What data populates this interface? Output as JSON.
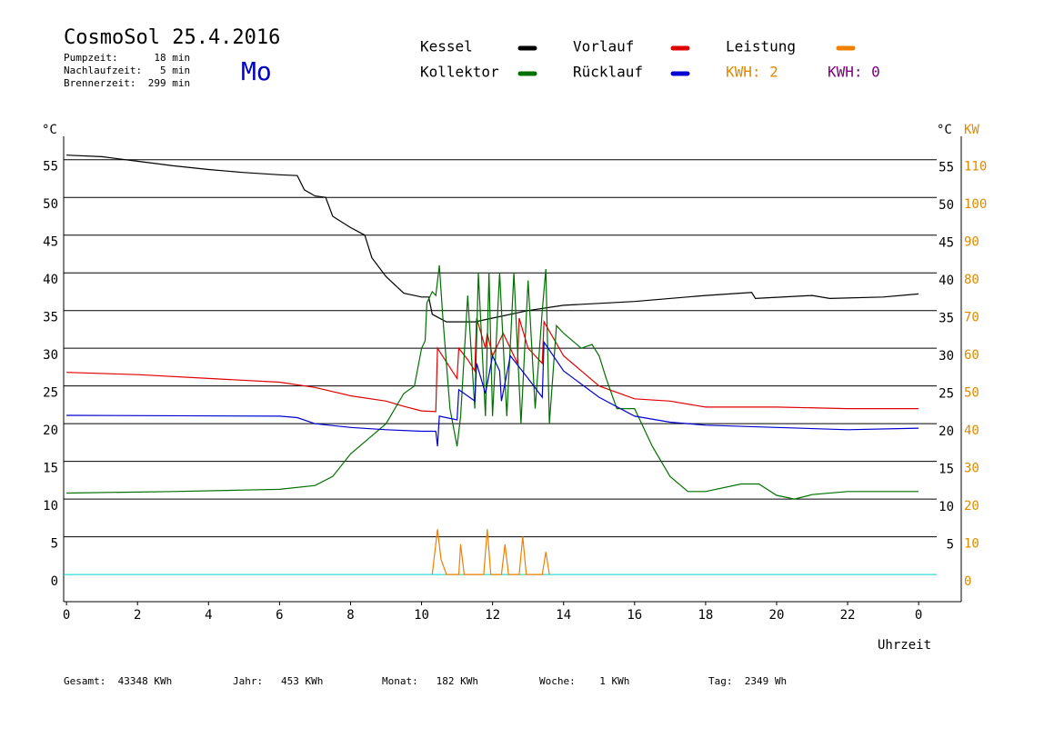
{
  "chart_data": {
    "type": "line",
    "title": "CosmoSol 25.4.2016",
    "info": [
      "Pumpzeit:      18 min",
      "Nachlaufzeit:   5 min",
      "Brennerzeit:  299 min"
    ],
    "weekday": "Mo",
    "y_unit": "°C",
    "y2_unit": "KW",
    "xlabel": "Uhrzeit",
    "xlim": [
      -0.08,
      25.2
    ],
    "xticks": [
      0,
      2,
      4,
      6,
      8,
      10,
      12,
      14,
      16,
      18,
      20,
      22,
      {
        "value": 24,
        "label": "0"
      }
    ],
    "ylim": [
      -3.6,
      58.1
    ],
    "yticks": [
      0,
      5,
      10,
      15,
      20,
      25,
      30,
      35,
      40,
      45,
      50,
      55
    ],
    "y2lim": [
      -7.2,
      116.2
    ],
    "y2ticks": [
      0,
      10,
      20,
      30,
      40,
      50,
      60,
      70,
      80,
      90,
      100,
      110
    ],
    "grid": true,
    "series": [
      {
        "name": "Kessel",
        "color": "#000000",
        "x": [
          0,
          1,
          2,
          3,
          4,
          5,
          6,
          6.5,
          6.7,
          7,
          7.3,
          7.5,
          8,
          8.4,
          8.6,
          9,
          9.5,
          10,
          10.2,
          10.3,
          10.7,
          11.5,
          12,
          13,
          14,
          16,
          18,
          19.3,
          19.4,
          21,
          21.5,
          23,
          24
        ],
        "values": [
          55.6,
          55.4,
          54.8,
          54.2,
          53.7,
          53.3,
          53.0,
          52.9,
          51,
          50.2,
          50,
          47.5,
          46,
          45,
          42,
          39.5,
          37.3,
          36.8,
          36.8,
          34.5,
          33.5,
          33.5,
          34,
          35,
          35.7,
          36.2,
          37,
          37.4,
          36.6,
          37,
          36.6,
          36.8,
          37.2
        ]
      },
      {
        "name": "Vorlauf",
        "color": "#e00000",
        "x": [
          0,
          2,
          4,
          6,
          7,
          8,
          9,
          9.5,
          10,
          10.4,
          10.45,
          11,
          11.05,
          11.3,
          11.5,
          11.55,
          11.8,
          11.85,
          12,
          12.1,
          12.3,
          12.5,
          12.7,
          12.75,
          13,
          13.4,
          13.45,
          14,
          15,
          16,
          17,
          18,
          20,
          22,
          24
        ],
        "values": [
          26.8,
          26.5,
          26,
          25.5,
          24.8,
          23.7,
          23,
          22.3,
          21.7,
          21.6,
          30,
          26,
          30,
          28.5,
          27,
          34,
          30,
          32,
          29,
          30,
          32,
          30,
          28,
          34,
          30,
          28,
          33.5,
          29,
          25,
          23.3,
          23,
          22.2,
          22.2,
          22,
          22
        ]
      },
      {
        "name": "Leistung",
        "color": "#f08000",
        "axis": "y2",
        "x": [
          10.3,
          10.45,
          10.55,
          10.7,
          11.05,
          11.1,
          11.2,
          11.75,
          11.85,
          11.95,
          12.25,
          12.35,
          12.45,
          12.75,
          12.85,
          12.95,
          13.4,
          13.5,
          13.6
        ],
        "values": [
          0,
          12,
          4,
          0,
          0,
          8,
          0,
          0,
          12,
          0,
          0,
          8,
          0,
          0,
          10,
          0,
          0,
          6,
          0
        ]
      },
      {
        "name": "Kollektor",
        "color": "#007000",
        "x": [
          0,
          3,
          5,
          6,
          7,
          7.5,
          8,
          8.5,
          9,
          9.5,
          9.8,
          10,
          10.1,
          10.15,
          10.3,
          10.4,
          10.5,
          10.6,
          10.8,
          11,
          11.1,
          11.3,
          11.5,
          11.6,
          11.8,
          11.9,
          12,
          12.2,
          12.4,
          12.6,
          12.8,
          13,
          13.2,
          13.4,
          13.5,
          13.6,
          13.8,
          14,
          14.5,
          14.8,
          15,
          15.2,
          15.5,
          16,
          16.5,
          17,
          17.5,
          18,
          19,
          19.5,
          20,
          20.5,
          21,
          22,
          23,
          24
        ],
        "values": [
          10.8,
          11,
          11.2,
          11.3,
          11.8,
          13,
          16,
          18,
          20,
          24,
          25,
          30,
          31,
          36,
          37.5,
          37,
          41,
          34,
          22,
          17,
          21,
          37,
          22,
          40,
          21,
          40,
          21,
          40,
          21,
          40,
          20,
          39,
          22,
          35,
          40.5,
          20,
          33,
          32,
          30,
          30.5,
          29,
          26,
          22,
          22,
          17,
          13,
          11,
          11,
          12,
          12,
          10.5,
          10,
          10.6,
          11,
          11,
          11
        ]
      },
      {
        "name": "Rücklauf",
        "color": "#0000d0",
        "x": [
          0,
          6,
          6.5,
          7,
          8,
          9,
          10,
          10.4,
          10.45,
          10.5,
          11,
          11.05,
          11.5,
          11.55,
          11.8,
          12,
          12.2,
          12.25,
          12.5,
          13,
          13.4,
          13.45,
          14,
          15,
          16,
          17,
          18,
          20,
          22,
          24
        ],
        "values": [
          21.1,
          21,
          20.8,
          20,
          19.5,
          19.2,
          19,
          19,
          17,
          21,
          20.5,
          24.5,
          23,
          28,
          24,
          29,
          27,
          23,
          29,
          26,
          23.5,
          30.8,
          27,
          23.5,
          21,
          20.2,
          19.8,
          19.5,
          19.2,
          19.4
        ]
      }
    ],
    "kwh": [
      {
        "label": "KWH: 2",
        "color": "#e08a00"
      },
      {
        "label": "KWH: 0",
        "color": "#800080"
      }
    ],
    "footer": [
      "Gesamt:  43348 KWh",
      "Jahr:   453 KWh",
      "Monat:   182 KWh",
      "Woche:    1 KWh",
      "Tag:  2349 Wh"
    ]
  }
}
